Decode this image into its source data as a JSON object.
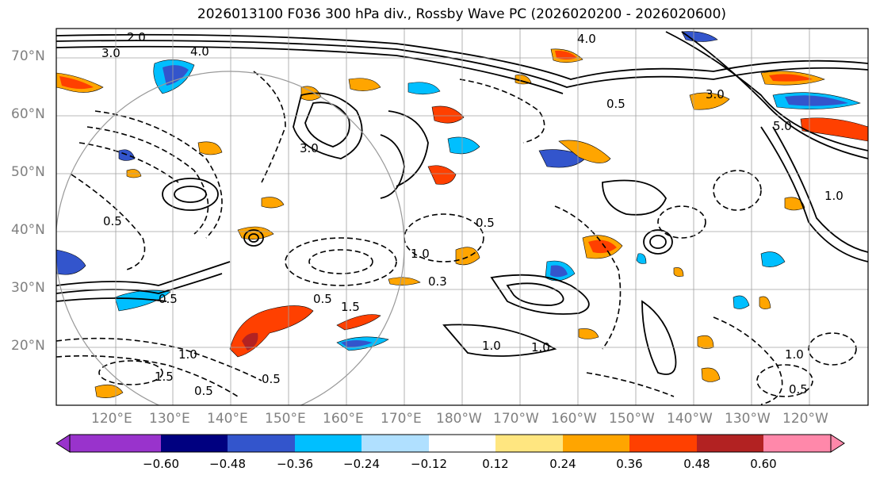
{
  "title": "2026013100 F036 300 hPa div., Rossby Wave PC (2026020200 - 2026020600)",
  "lat_labels": [
    "70°N",
    "60°N",
    "50°N",
    "40°N",
    "30°N",
    "20°N"
  ],
  "lon_labels": [
    "120°E",
    "130°E",
    "140°E",
    "150°E",
    "160°E",
    "170°E",
    "180°W",
    "170°W",
    "160°W",
    "150°W",
    "140°W",
    "130°W",
    "120°W"
  ],
  "colorbar": {
    "ticks": [
      "−0.60",
      "−0.48",
      "−0.36",
      "−0.24",
      "−0.12",
      "0.12",
      "0.24",
      "0.36",
      "0.48",
      "0.60"
    ],
    "colors": [
      "#9933cc",
      "#000080",
      "#3355cc",
      "#00bfff",
      "#b0e0ff",
      "#ffffff",
      "#ffe680",
      "#ffa500",
      "#ff4000",
      "#b22222",
      "#ff88aa"
    ]
  },
  "contour_labels": [
    "3.0",
    "2.0",
    "4.0",
    "0.5",
    "1.0",
    "1.5",
    "5.0",
    "0.5",
    "1.0",
    "0.3",
    "1.0",
    "0.5",
    "3.0",
    "0.5",
    "1.0",
    "0.5",
    "0.5",
    "1.0",
    "0.5",
    "4.0",
    "3.0",
    "0.5",
    "1.0",
    "1.5"
  ],
  "colors": {
    "frame": "#000000",
    "grid": "#a0a0a0",
    "label": "#808080"
  }
}
